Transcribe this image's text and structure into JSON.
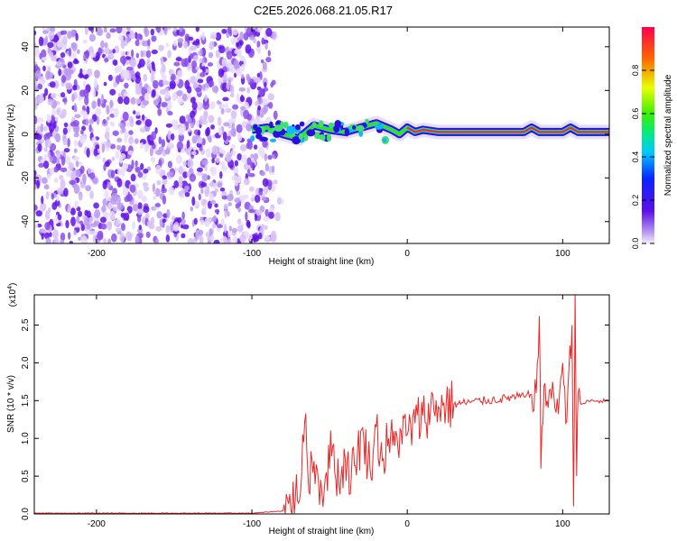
{
  "title": "C2E5.2026.068.21.05.R17",
  "chart_data": [
    {
      "type": "heatmap",
      "xlabel": "Height of straight line (km)",
      "ylabel": "Frequency (Hz)",
      "xlim": [
        -240,
        130
      ],
      "ylim": [
        -50,
        49
      ],
      "xticks": [
        -200,
        -100,
        0,
        100
      ],
      "yticks": [
        -40,
        -20,
        0,
        20,
        40
      ],
      "noise_region_x": [
        -240,
        -80
      ],
      "signal_track": {
        "x": [
          -100,
          -90,
          -80,
          -70,
          -60,
          -50,
          -40,
          -30,
          -20,
          -10,
          -5,
          0,
          5,
          10,
          20,
          40,
          60,
          75,
          80,
          85,
          90,
          100,
          105,
          110,
          130
        ],
        "y": [
          2,
          3,
          0,
          -2,
          4,
          2,
          1,
          3,
          5,
          2,
          0,
          3,
          1,
          2,
          1,
          1,
          1,
          1,
          3,
          1,
          1,
          1,
          3,
          1,
          1
        ]
      },
      "colorbar": {
        "label": "Normalized spectral amplitude",
        "range": [
          0.0,
          1.0
        ],
        "ticks": [
          0.0,
          0.2,
          0.4,
          0.6,
          0.8
        ]
      }
    },
    {
      "type": "line",
      "xlabel": "Height of straight line (km)",
      "ylabel": "SNR (10 * v/v)",
      "yscale_label": "(x10",
      "yscale_exp": "4",
      "yscale_close": ")",
      "xlim": [
        -240,
        130
      ],
      "ylim": [
        0,
        2.9
      ],
      "xticks": [
        -200,
        -100,
        0,
        100
      ],
      "yticks": [
        "0.0",
        "0.5",
        "1.0",
        "1.5",
        "2.0",
        "2.5"
      ],
      "series": [
        {
          "color": "#e82828",
          "x": [
            -240,
            -100,
            -80,
            -72,
            -68,
            -66,
            -64,
            -60,
            -55,
            -52,
            -48,
            -44,
            -40,
            -36,
            -32,
            -28,
            -24,
            -20,
            -16,
            -12,
            -8,
            -4,
            0,
            5,
            10,
            15,
            20,
            25,
            30,
            40,
            50,
            60,
            70,
            75,
            80,
            83,
            85,
            86,
            88,
            90,
            92,
            95,
            98,
            100,
            102,
            104,
            106,
            107,
            108,
            109,
            110,
            112,
            115,
            120,
            125,
            130
          ],
          "y": [
            0.01,
            0.01,
            0.04,
            0.2,
            0.5,
            1.22,
            0.55,
            0.7,
            0.3,
            0.55,
            0.9,
            0.4,
            0.75,
            0.5,
            0.85,
            1.0,
            0.6,
            1.15,
            0.7,
            1.0,
            0.9,
            1.1,
            1.05,
            1.2,
            1.3,
            1.38,
            1.42,
            1.45,
            1.45,
            1.48,
            1.5,
            1.52,
            1.55,
            1.55,
            1.58,
            1.6,
            2.62,
            0.6,
            1.7,
            1.5,
            1.65,
            1.4,
            1.6,
            2.0,
            1.2,
            1.9,
            2.5,
            0.1,
            2.95,
            0.5,
            1.6,
            1.45,
            1.48,
            1.5,
            1.49,
            1.5
          ]
        }
      ]
    }
  ]
}
